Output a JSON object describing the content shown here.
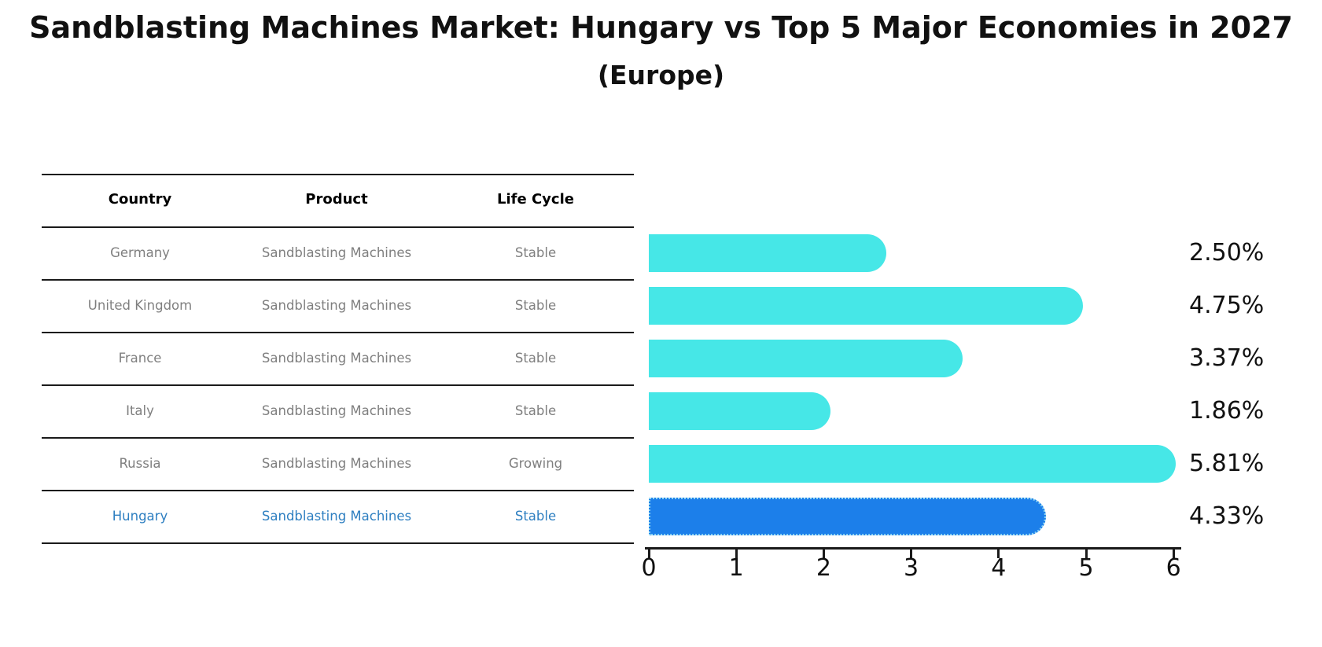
{
  "title": "Sandblasting Machines Market: Hungary vs Top 5 Major Economies in 2027",
  "subtitle": "(Europe)",
  "table": {
    "headers": [
      "Country",
      "Product",
      "Life Cycle"
    ],
    "rows": [
      {
        "country": "Germany",
        "product": "Sandblasting Machines",
        "life_cycle": "Stable",
        "highlight": false
      },
      {
        "country": "United Kingdom",
        "product": "Sandblasting Machines",
        "life_cycle": "Stable",
        "highlight": false
      },
      {
        "country": "France",
        "product": "Sandblasting Machines",
        "life_cycle": "Stable",
        "highlight": false
      },
      {
        "country": "Italy",
        "product": "Sandblasting Machines",
        "life_cycle": "Stable",
        "highlight": false
      },
      {
        "country": "Russia",
        "product": "Sandblasting Machines",
        "life_cycle": "Growing",
        "highlight": false
      },
      {
        "country": "Hungary",
        "product": "Sandblasting Machines",
        "life_cycle": "Stable",
        "highlight": true
      }
    ]
  },
  "chart_data": {
    "type": "bar",
    "orientation": "horizontal",
    "title": "Sandblasting Machines Market: Hungary vs Top 5 Major Economies in 2027",
    "subtitle": "(Europe)",
    "categories": [
      "Germany",
      "United Kingdom",
      "France",
      "Italy",
      "Russia",
      "Hungary"
    ],
    "values": [
      2.5,
      4.75,
      3.37,
      1.86,
      5.81,
      4.33
    ],
    "value_labels": [
      "2.50%",
      "4.75%",
      "3.37%",
      "1.86%",
      "5.81%",
      "4.33%"
    ],
    "xlabel": "",
    "ylabel": "",
    "xlim": [
      0,
      6
    ],
    "xticks": [
      "0",
      "1",
      "2",
      "3",
      "4",
      "5",
      "6"
    ],
    "grid": false,
    "legend": false,
    "bar_color": "#46e7e7",
    "highlight_index": 5,
    "highlight_bar_color": "#1c7fea",
    "highlight_edge_color": "#8fd6f2",
    "highlight_text_color": "#2e7fc1",
    "table_text_color": "#7f7f7f"
  }
}
